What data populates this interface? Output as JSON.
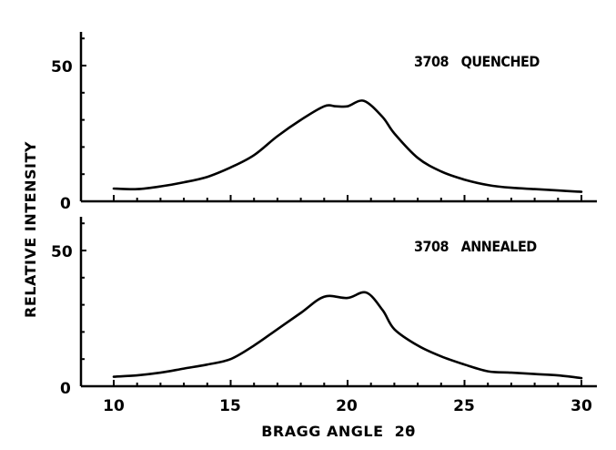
{
  "chart_data": [
    {
      "type": "line",
      "panel": "top",
      "title": "3708   QUENCHED",
      "xlabel": "BRAGG ANGLE  2θ",
      "ylabel": "RELATIVE INTENSITY",
      "xlim": [
        9,
        31
      ],
      "ylim": [
        0,
        62
      ],
      "yticks": [
        0,
        50
      ],
      "xticks_minor_step": 1,
      "grid": false,
      "x": [
        10,
        11,
        12,
        13,
        14,
        15,
        16,
        17,
        18,
        19,
        19.5,
        20,
        20.7,
        21.5,
        22,
        23,
        24,
        25,
        26,
        27,
        28,
        29,
        30
      ],
      "series": [
        {
          "name": "3708 QUENCHED",
          "values": [
            4.7,
            4.5,
            5.5,
            7,
            9,
            12.5,
            17,
            24,
            30,
            35,
            35,
            35,
            37,
            31,
            25,
            16,
            11,
            8,
            6,
            5,
            4.5,
            4,
            3.5
          ]
        }
      ]
    },
    {
      "type": "line",
      "panel": "bottom",
      "title": "3708   ANNEALED",
      "xlabel": "BRAGG ANGLE  2θ",
      "ylabel": "RELATIVE INTENSITY",
      "xlim": [
        9,
        31
      ],
      "ylim": [
        0,
        62
      ],
      "yticks": [
        0,
        50
      ],
      "xticks": [
        10,
        15,
        20,
        25,
        30
      ],
      "grid": false,
      "x": [
        10,
        11,
        12,
        13,
        14,
        15,
        16,
        17,
        18,
        19,
        20,
        20.8,
        21.5,
        22,
        23,
        24,
        25,
        26,
        27,
        28,
        29,
        30
      ],
      "series": [
        {
          "name": "3708 ANNEALED",
          "values": [
            3.5,
            4,
            5,
            6.5,
            8,
            10,
            15,
            21,
            27,
            33,
            32.5,
            34.5,
            28,
            21,
            15,
            11,
            8,
            5.5,
            5,
            4.5,
            4,
            3
          ]
        }
      ]
    }
  ],
  "labels": {
    "top_panel": "3708   QUENCHED",
    "bottom_panel": "3708   ANNEALED",
    "ylabel": "RELATIVE INTENSITY",
    "xlabel": "BRAGG ANGLE  2θ",
    "y_tick_0": "0",
    "y_tick_50": "50",
    "x_ticks": [
      "10",
      "15",
      "20",
      "25",
      "30"
    ]
  },
  "colors": {
    "ink": "#000000",
    "background": "#ffffff"
  }
}
